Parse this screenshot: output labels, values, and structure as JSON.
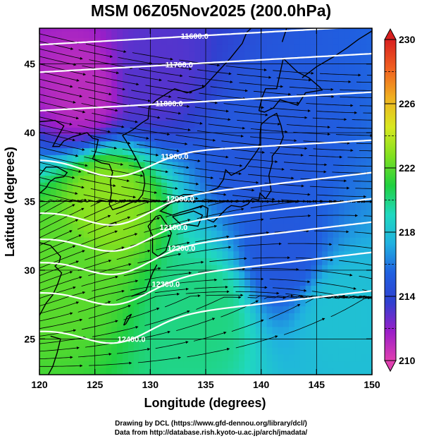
{
  "title": "MSM 06Z05Nov2025 (200.0hPa)",
  "axes": {
    "xlabel": "Longitude (degrees)",
    "ylabel": "Latitude  (degrees)",
    "xlim": [
      120,
      150
    ],
    "ylim": [
      22.4,
      47.6
    ],
    "xticks": [
      "120",
      "125",
      "130",
      "135",
      "140",
      "145",
      "150"
    ],
    "yticks": [
      "25",
      "30",
      "35",
      "40",
      "45"
    ]
  },
  "colorbar": {
    "min": 210,
    "max": 230,
    "tick_labels": [
      "210",
      "214",
      "218",
      "222",
      "226",
      "230"
    ],
    "colors": [
      "#e040b0",
      "#9a1ec8",
      "#3040d0",
      "#2060e0",
      "#20b0e0",
      "#20d8c0",
      "#20d040",
      "#80e020",
      "#d8e820",
      "#f0b020",
      "#f06020",
      "#d82020"
    ]
  },
  "contours": [
    {
      "label": "11600.0",
      "level": 11600
    },
    {
      "label": "11700.0",
      "level": 11700
    },
    {
      "label": "11800.0",
      "level": 11800
    },
    {
      "label": "11900.0",
      "level": 11900
    },
    {
      "label": "12000.0",
      "level": 12000
    },
    {
      "label": "12100.0",
      "level": 12100
    },
    {
      "label": "12200.0",
      "level": 12200
    },
    {
      "label": "12300.0",
      "level": 12300
    },
    {
      "label": "12400.0",
      "level": 12400
    }
  ],
  "credits": {
    "line1": "Drawing by DCL (https://www.gfd-dennou.org/library/dcl/)",
    "line2": "Data from http://database.rish.kyoto-u.ac.jp/arch/jmadata/"
  },
  "chart_data": {
    "type": "heatmap",
    "title": "MSM 06Z05Nov2025 (200.0hPa)",
    "xlabel": "Longitude (degrees)",
    "ylabel": "Latitude  (degrees)",
    "xlim": [
      120,
      150
    ],
    "ylim": [
      22.4,
      47.6
    ],
    "colorbar_range": [
      210,
      230
    ],
    "field_samples": [
      {
        "lon": 124,
        "lat": 43,
        "value": 211
      },
      {
        "lon": 130,
        "lat": 44,
        "value": 213
      },
      {
        "lon": 140,
        "lat": 38,
        "value": 215
      },
      {
        "lon": 126,
        "lat": 35,
        "value": 223
      },
      {
        "lon": 122,
        "lat": 30,
        "value": 222
      },
      {
        "lon": 135,
        "lat": 27,
        "value": 220
      },
      {
        "lon": 147,
        "lat": 27,
        "value": 218
      },
      {
        "lon": 142,
        "lat": 31,
        "value": 215
      }
    ],
    "contour_levels": [
      11600,
      11700,
      11800,
      11900,
      12000,
      12100,
      12200,
      12300,
      12400
    ]
  }
}
